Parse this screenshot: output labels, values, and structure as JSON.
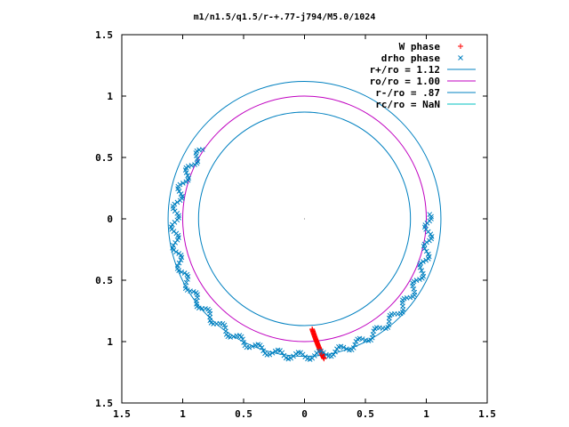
{
  "chart_data": {
    "type": "scatter",
    "title": "m1/n1.5/q1.5/r-+.77-j794/M5.0/1024",
    "xlim": [
      -1.5,
      1.5
    ],
    "ylim": [
      -1.5,
      1.5
    ],
    "x_tick_labels": [
      "1.5",
      "1",
      "0.5",
      "0",
      "0.5",
      "1",
      "1.5"
    ],
    "y_tick_labels": [
      "1.5",
      "1",
      "0.5",
      "0",
      "0.5",
      "1",
      "1.5"
    ],
    "tick_values": [
      -1.5,
      -1,
      -0.5,
      0,
      0.5,
      1,
      1.5
    ],
    "grid": false,
    "legend_position": "top-right",
    "series": [
      {
        "name": "W phase",
        "kind": "points",
        "marker": "+",
        "color": "#ff0000",
        "arc": {
          "radius_start": 0.9,
          "radius_end": 1.15,
          "angle_start_deg": -86,
          "angle_end_deg": -82,
          "count": 40
        }
      },
      {
        "name": "drho phase",
        "kind": "points",
        "marker": "x",
        "color": "#0080c0",
        "arc": {
          "radius_start": 0.9,
          "radius_end": 1.12,
          "angle_start_deg": 146,
          "angle_end_deg": 362,
          "count": 220
        }
      },
      {
        "name": "r+/ro = 1.12",
        "kind": "circle",
        "radius": 1.12,
        "color": "#0080c0"
      },
      {
        "name": "ro/ro = 1.00",
        "kind": "circle",
        "radius": 1.0,
        "color": "#c000c0"
      },
      {
        "name": "r-/ro = .87",
        "kind": "circle",
        "radius": 0.87,
        "color": "#0080c0"
      },
      {
        "name": "rc/ro = NaN",
        "kind": "circle",
        "radius": null,
        "color": "#00c0c0"
      }
    ]
  }
}
